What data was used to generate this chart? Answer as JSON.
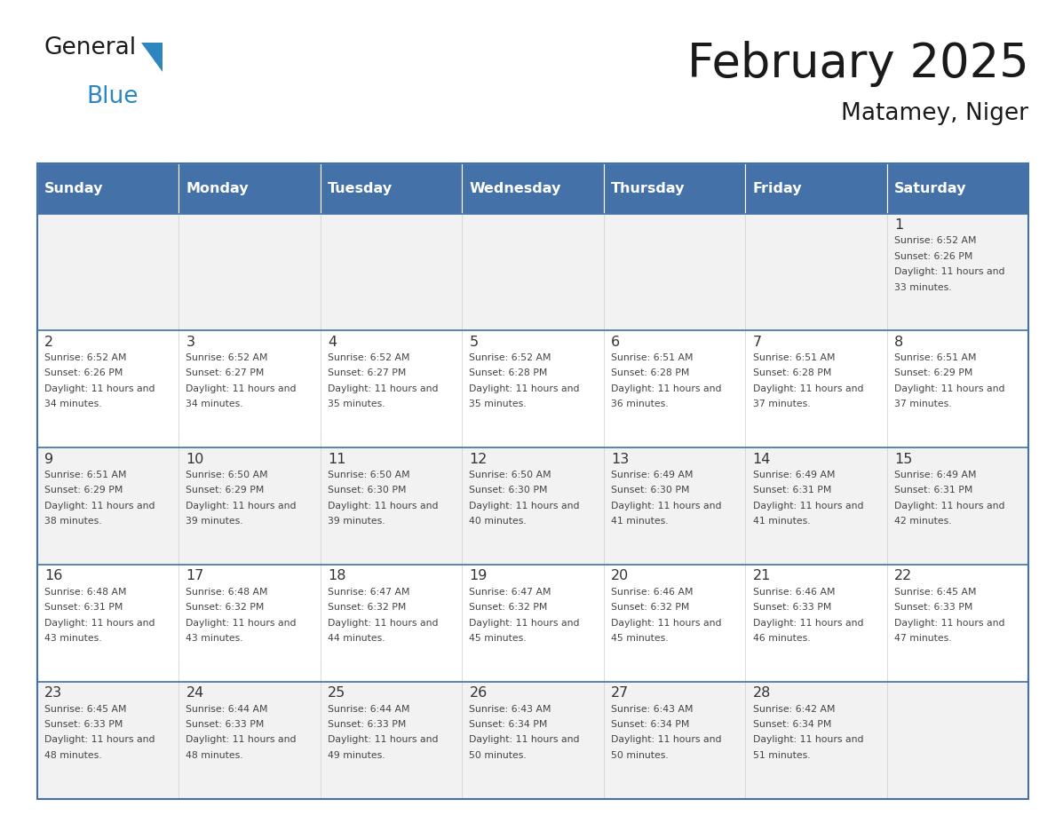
{
  "title": "February 2025",
  "subtitle": "Matamey, Niger",
  "days_of_week": [
    "Sunday",
    "Monday",
    "Tuesday",
    "Wednesday",
    "Thursday",
    "Friday",
    "Saturday"
  ],
  "header_bg": "#4472a8",
  "header_text": "#ffffff",
  "row_bg_odd": "#f2f2f2",
  "row_bg_even": "#ffffff",
  "cell_border": "#4472a8",
  "day_num_color": "#333333",
  "info_text_color": "#444444",
  "title_color": "#1a1a1a",
  "logo_black": "#1a1a1a",
  "logo_blue": "#2e86c1",
  "triangle_color": "#2e86c1",
  "calendar_data": [
    [
      null,
      null,
      null,
      null,
      null,
      null,
      {
        "day": 1,
        "sunrise": "6:52 AM",
        "sunset": "6:26 PM",
        "daylight": "11 hours and 33 minutes."
      }
    ],
    [
      {
        "day": 2,
        "sunrise": "6:52 AM",
        "sunset": "6:26 PM",
        "daylight": "11 hours and 34 minutes."
      },
      {
        "day": 3,
        "sunrise": "6:52 AM",
        "sunset": "6:27 PM",
        "daylight": "11 hours and 34 minutes."
      },
      {
        "day": 4,
        "sunrise": "6:52 AM",
        "sunset": "6:27 PM",
        "daylight": "11 hours and 35 minutes."
      },
      {
        "day": 5,
        "sunrise": "6:52 AM",
        "sunset": "6:28 PM",
        "daylight": "11 hours and 35 minutes."
      },
      {
        "day": 6,
        "sunrise": "6:51 AM",
        "sunset": "6:28 PM",
        "daylight": "11 hours and 36 minutes."
      },
      {
        "day": 7,
        "sunrise": "6:51 AM",
        "sunset": "6:28 PM",
        "daylight": "11 hours and 37 minutes."
      },
      {
        "day": 8,
        "sunrise": "6:51 AM",
        "sunset": "6:29 PM",
        "daylight": "11 hours and 37 minutes."
      }
    ],
    [
      {
        "day": 9,
        "sunrise": "6:51 AM",
        "sunset": "6:29 PM",
        "daylight": "11 hours and 38 minutes."
      },
      {
        "day": 10,
        "sunrise": "6:50 AM",
        "sunset": "6:29 PM",
        "daylight": "11 hours and 39 minutes."
      },
      {
        "day": 11,
        "sunrise": "6:50 AM",
        "sunset": "6:30 PM",
        "daylight": "11 hours and 39 minutes."
      },
      {
        "day": 12,
        "sunrise": "6:50 AM",
        "sunset": "6:30 PM",
        "daylight": "11 hours and 40 minutes."
      },
      {
        "day": 13,
        "sunrise": "6:49 AM",
        "sunset": "6:30 PM",
        "daylight": "11 hours and 41 minutes."
      },
      {
        "day": 14,
        "sunrise": "6:49 AM",
        "sunset": "6:31 PM",
        "daylight": "11 hours and 41 minutes."
      },
      {
        "day": 15,
        "sunrise": "6:49 AM",
        "sunset": "6:31 PM",
        "daylight": "11 hours and 42 minutes."
      }
    ],
    [
      {
        "day": 16,
        "sunrise": "6:48 AM",
        "sunset": "6:31 PM",
        "daylight": "11 hours and 43 minutes."
      },
      {
        "day": 17,
        "sunrise": "6:48 AM",
        "sunset": "6:32 PM",
        "daylight": "11 hours and 43 minutes."
      },
      {
        "day": 18,
        "sunrise": "6:47 AM",
        "sunset": "6:32 PM",
        "daylight": "11 hours and 44 minutes."
      },
      {
        "day": 19,
        "sunrise": "6:47 AM",
        "sunset": "6:32 PM",
        "daylight": "11 hours and 45 minutes."
      },
      {
        "day": 20,
        "sunrise": "6:46 AM",
        "sunset": "6:32 PM",
        "daylight": "11 hours and 45 minutes."
      },
      {
        "day": 21,
        "sunrise": "6:46 AM",
        "sunset": "6:33 PM",
        "daylight": "11 hours and 46 minutes."
      },
      {
        "day": 22,
        "sunrise": "6:45 AM",
        "sunset": "6:33 PM",
        "daylight": "11 hours and 47 minutes."
      }
    ],
    [
      {
        "day": 23,
        "sunrise": "6:45 AM",
        "sunset": "6:33 PM",
        "daylight": "11 hours and 48 minutes."
      },
      {
        "day": 24,
        "sunrise": "6:44 AM",
        "sunset": "6:33 PM",
        "daylight": "11 hours and 48 minutes."
      },
      {
        "day": 25,
        "sunrise": "6:44 AM",
        "sunset": "6:33 PM",
        "daylight": "11 hours and 49 minutes."
      },
      {
        "day": 26,
        "sunrise": "6:43 AM",
        "sunset": "6:34 PM",
        "daylight": "11 hours and 50 minutes."
      },
      {
        "day": 27,
        "sunrise": "6:43 AM",
        "sunset": "6:34 PM",
        "daylight": "11 hours and 50 minutes."
      },
      {
        "day": 28,
        "sunrise": "6:42 AM",
        "sunset": "6:34 PM",
        "daylight": "11 hours and 51 minutes."
      },
      null
    ]
  ],
  "figsize": [
    11.88,
    9.18
  ],
  "dpi": 100
}
